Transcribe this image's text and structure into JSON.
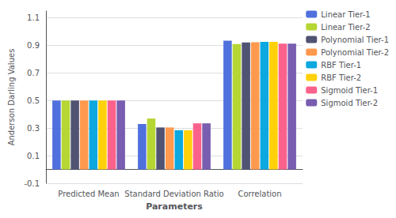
{
  "chart_data": {
    "type": "bar",
    "categories": [
      "Predicted Mean",
      "Standard Deviation Ratio",
      "Correlation"
    ],
    "series": [
      {
        "name": "Linear Tier-1",
        "values": [
          0.5,
          0.33,
          0.935
        ]
      },
      {
        "name": "Linear Tier-2",
        "values": [
          0.5,
          0.37,
          0.91
        ]
      },
      {
        "name": "Polynomial Tier-1",
        "values": [
          0.5,
          0.305,
          0.922
        ]
      },
      {
        "name": "Polynomial Tier-2",
        "values": [
          0.5,
          0.305,
          0.923
        ]
      },
      {
        "name": "RBF Tier-1",
        "values": [
          0.5,
          0.285,
          0.926
        ]
      },
      {
        "name": "RBF Tier-2",
        "values": [
          0.5,
          0.285,
          0.927
        ]
      },
      {
        "name": "Sigmoid Tier-1",
        "values": [
          0.5,
          0.335,
          0.913
        ]
      },
      {
        "name": "Sigmoid Tier-2",
        "values": [
          0.5,
          0.335,
          0.913
        ]
      }
    ],
    "xlabel": "Parameters",
    "ylabel": "Anderson Darling Values",
    "ylim": [
      -0.1,
      1.15
    ],
    "yticks": [
      -0.1,
      0.1,
      0.3,
      0.5,
      0.7,
      0.9,
      1.1
    ],
    "grid": true,
    "legend": "upper right"
  }
}
